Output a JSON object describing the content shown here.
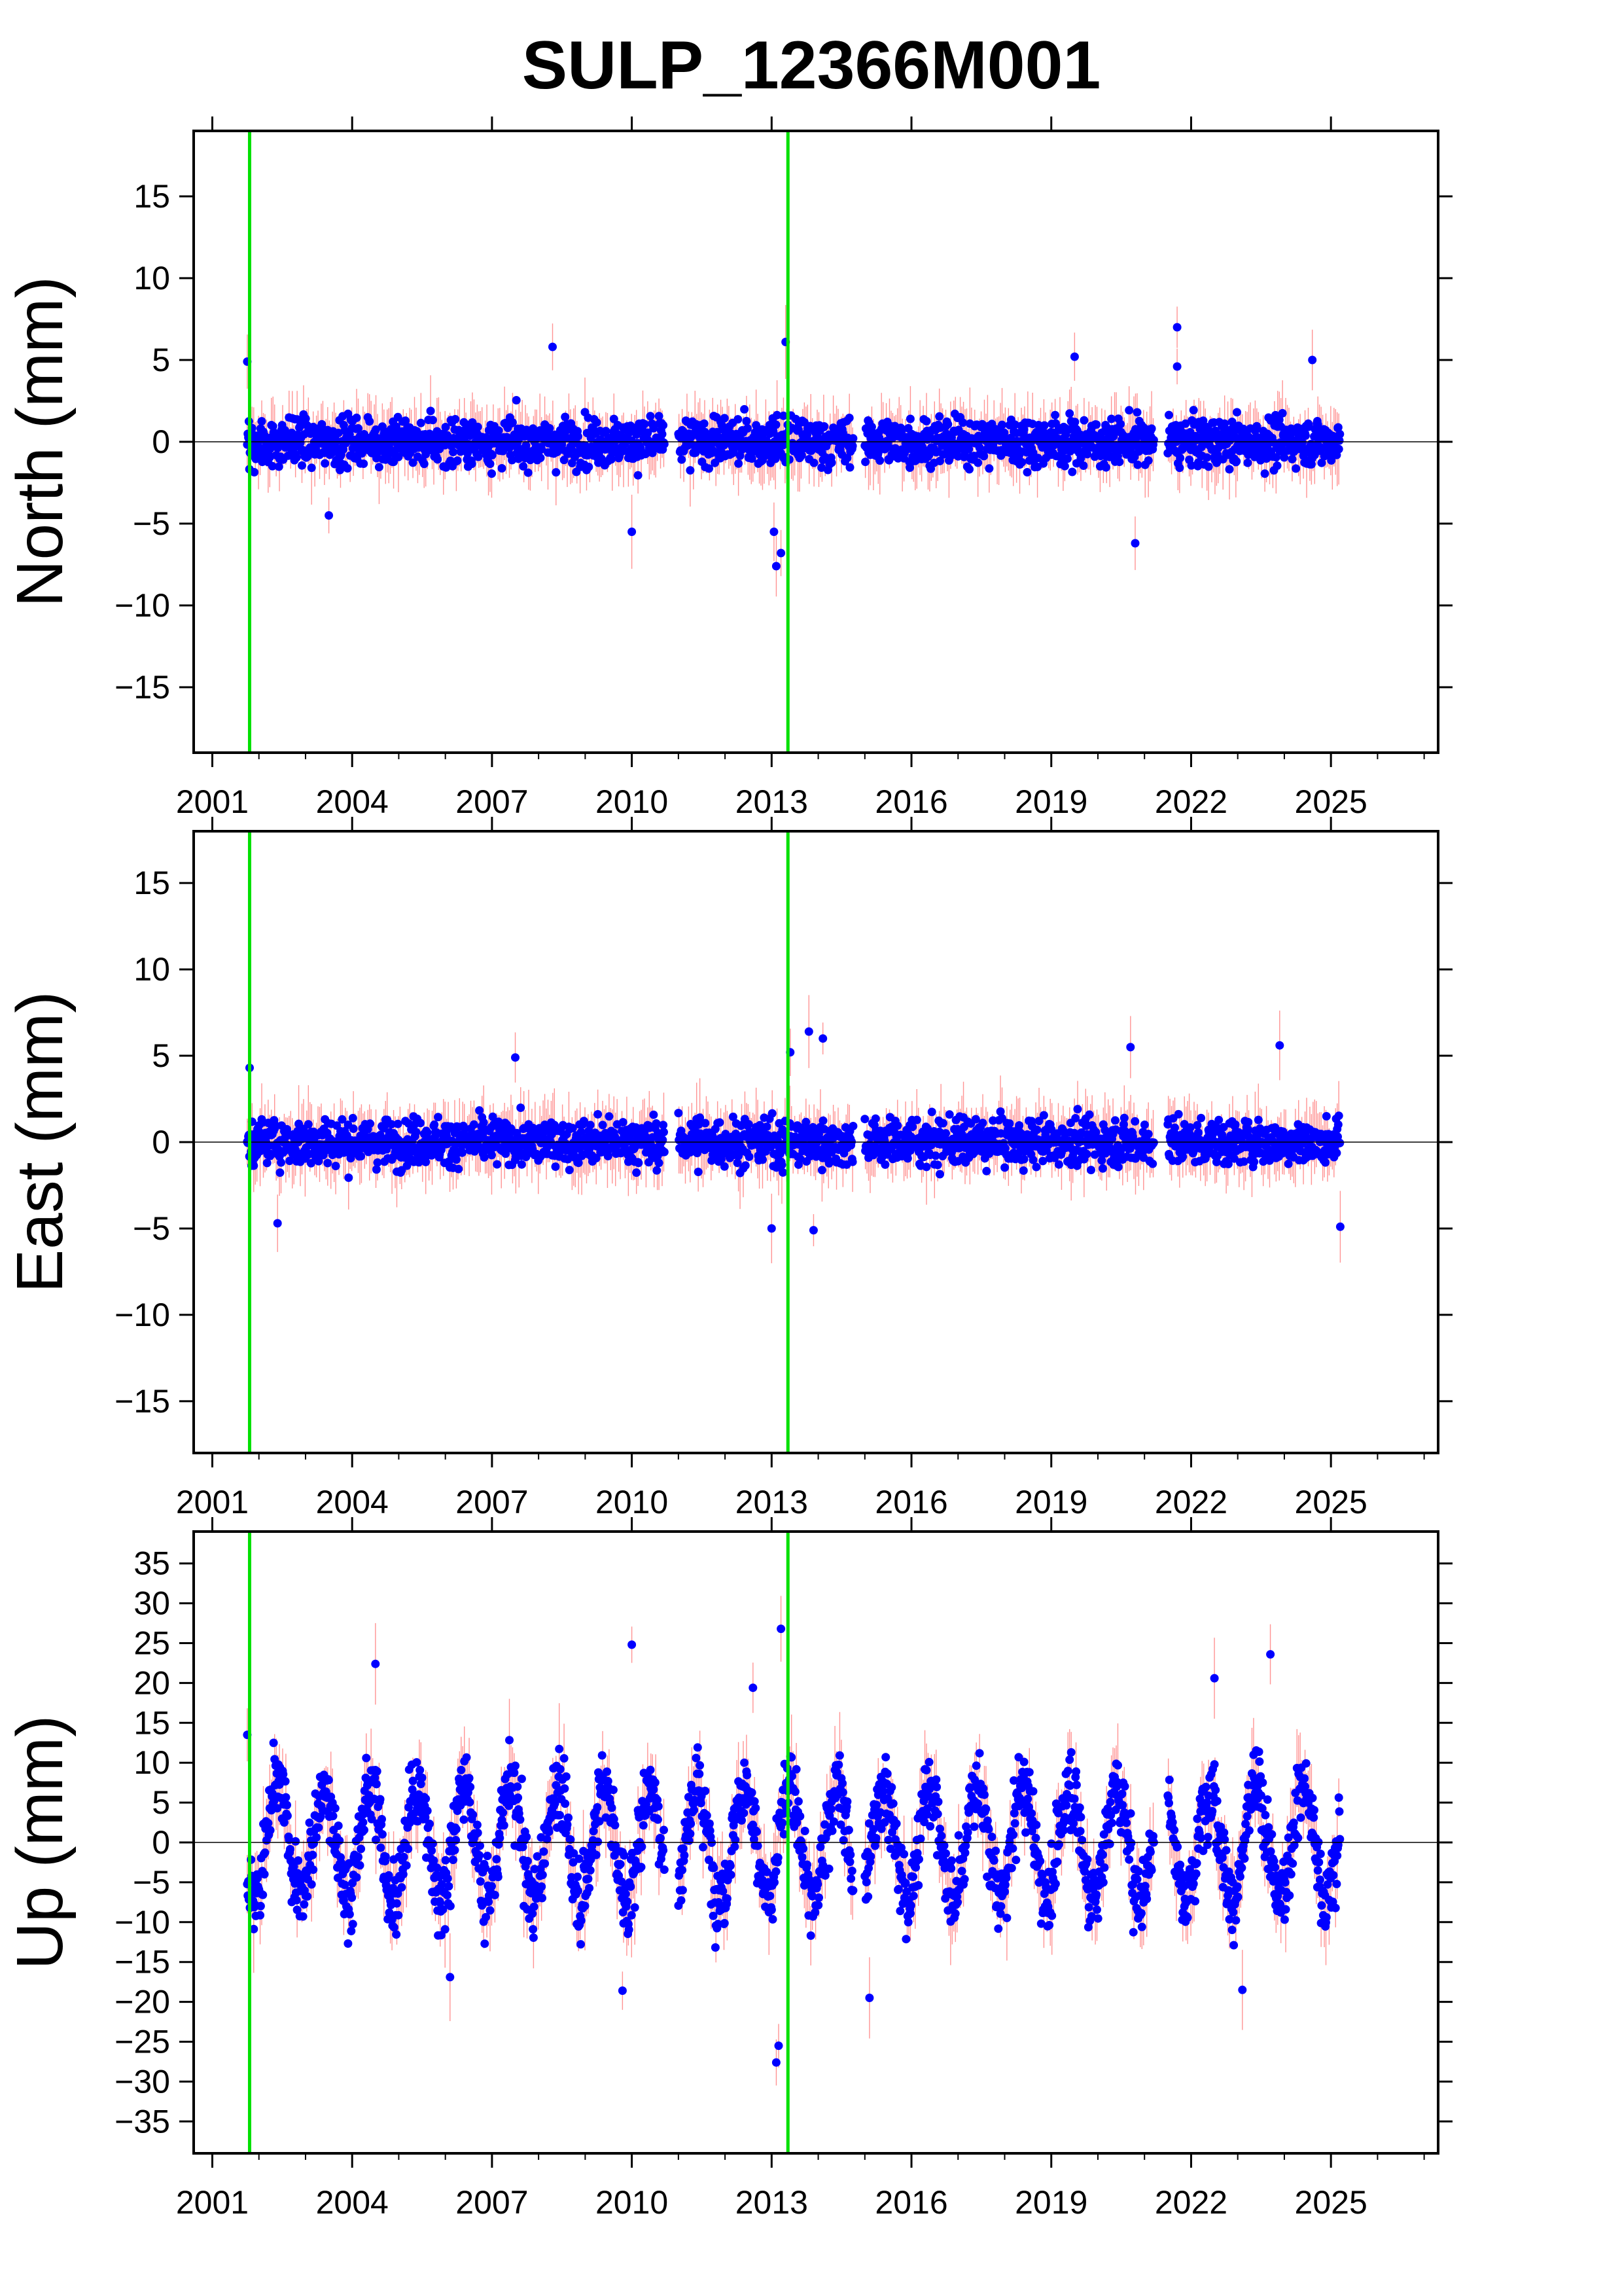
{
  "title": "SULP_12366M001",
  "colors": {
    "points": "#0000ff",
    "error_bars": "#ff7070",
    "event_lines": "#00e000",
    "zero_line": "#000000",
    "frame": "#000000"
  },
  "chart_data": [
    {
      "type": "scatter",
      "panel": "north",
      "ylabel": "North (mm)",
      "xlim": [
        2000.6,
        2027.3
      ],
      "ylim": [
        -19,
        19
      ],
      "yticks": [
        15,
        10,
        5,
        0,
        -5,
        -10,
        -15
      ],
      "xticks": [
        2001,
        2004,
        2007,
        2010,
        2013,
        2016,
        2019,
        2022,
        2025
      ],
      "zero_line": 0,
      "event_lines_x": [
        2001.8,
        2013.35
      ],
      "data_segments": [
        [
          2001.75,
          2010.7
        ],
        [
          2011.0,
          2014.75
        ],
        [
          2015.0,
          2021.2
        ],
        [
          2021.5,
          2025.2
        ]
      ],
      "typical_scatter_mm": 1.2,
      "outliers": [
        {
          "x": 2001.75,
          "y": 4.9
        },
        {
          "x": 2008.3,
          "y": 5.8
        },
        {
          "x": 2013.3,
          "y": 6.1
        },
        {
          "x": 2013.1,
          "y": -7.6
        },
        {
          "x": 2013.2,
          "y": -6.8
        },
        {
          "x": 2013.05,
          "y": -5.5
        },
        {
          "x": 2021.7,
          "y": 7.0
        },
        {
          "x": 2021.7,
          "y": 4.6
        },
        {
          "x": 2020.8,
          "y": -6.2
        },
        {
          "x": 2010.0,
          "y": -5.5
        },
        {
          "x": 2003.5,
          "y": -4.5
        },
        {
          "x": 2019.5,
          "y": 5.2
        },
        {
          "x": 2024.6,
          "y": 5.0
        }
      ]
    },
    {
      "type": "scatter",
      "panel": "east",
      "ylabel": "East (mm)",
      "xlim": [
        2000.6,
        2027.3
      ],
      "ylim": [
        -18,
        18
      ],
      "yticks": [
        15,
        10,
        5,
        0,
        -5,
        -10,
        -15
      ],
      "xticks": [
        2001,
        2004,
        2007,
        2010,
        2013,
        2016,
        2019,
        2022,
        2025
      ],
      "zero_line": 0,
      "event_lines_x": [
        2001.8,
        2013.35
      ],
      "data_segments": [
        [
          2001.75,
          2010.7
        ],
        [
          2011.0,
          2014.75
        ],
        [
          2015.0,
          2021.2
        ],
        [
          2021.5,
          2025.2
        ]
      ],
      "typical_scatter_mm": 1.1,
      "outliers": [
        {
          "x": 2001.8,
          "y": 4.3
        },
        {
          "x": 2007.5,
          "y": 4.9
        },
        {
          "x": 2013.4,
          "y": 5.2
        },
        {
          "x": 2013.8,
          "y": 6.4
        },
        {
          "x": 2014.1,
          "y": 6.0
        },
        {
          "x": 2013.9,
          "y": -5.1
        },
        {
          "x": 2013.0,
          "y": -5.0
        },
        {
          "x": 2020.7,
          "y": 5.5
        },
        {
          "x": 2023.9,
          "y": 5.6
        },
        {
          "x": 2025.2,
          "y": -4.9
        },
        {
          "x": 2002.4,
          "y": -4.7
        }
      ]
    },
    {
      "type": "scatter",
      "panel": "up",
      "ylabel": "Up (mm)",
      "xlim": [
        2000.6,
        2027.3
      ],
      "ylim": [
        -39,
        39
      ],
      "yticks": [
        35,
        30,
        25,
        20,
        15,
        10,
        5,
        0,
        -5,
        -10,
        -15,
        -20,
        -25,
        -30,
        -35
      ],
      "xticks": [
        2001,
        2004,
        2007,
        2010,
        2013,
        2016,
        2019,
        2022,
        2025
      ],
      "zero_line": 0,
      "event_lines_x": [
        2001.8,
        2013.35
      ],
      "data_segments": [
        [
          2001.75,
          2010.7
        ],
        [
          2011.0,
          2014.75
        ],
        [
          2015.0,
          2021.2
        ],
        [
          2021.5,
          2025.2
        ]
      ],
      "seasonal_amplitude_mm": 7,
      "typical_scatter_mm": 3.5,
      "outliers": [
        {
          "x": 2001.75,
          "y": 13.5
        },
        {
          "x": 2004.5,
          "y": 22.4
        },
        {
          "x": 2010.0,
          "y": 24.8
        },
        {
          "x": 2013.2,
          "y": 26.8
        },
        {
          "x": 2013.1,
          "y": -27.6
        },
        {
          "x": 2013.15,
          "y": -25.5
        },
        {
          "x": 2012.6,
          "y": 19.4
        },
        {
          "x": 2023.7,
          "y": 23.6
        },
        {
          "x": 2022.5,
          "y": 20.6
        },
        {
          "x": 2006.1,
          "y": -16.9
        },
        {
          "x": 2009.8,
          "y": -18.6
        },
        {
          "x": 2023.1,
          "y": -18.5
        },
        {
          "x": 2015.1,
          "y": -19.5
        }
      ]
    }
  ]
}
